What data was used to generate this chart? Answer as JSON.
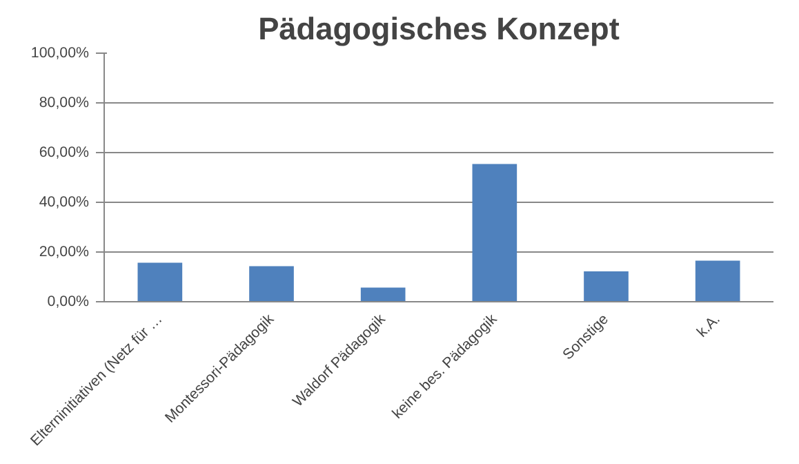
{
  "chart_data": {
    "type": "bar",
    "title": "Pädagogisches Konzept",
    "categories": [
      "Elterninitiativen (Netz für …",
      "Montessori-Pädagogik",
      "Waldorf Pädagogik",
      "keine bes. Pädagogik",
      "Sonstige",
      "k.A."
    ],
    "values": [
      15.7,
      14.3,
      5.7,
      55.4,
      12.2,
      16.5
    ],
    "color": "#4f81bd",
    "ylim": [
      0,
      100
    ],
    "yticks": [
      {
        "value": 0,
        "label": "0,00%"
      },
      {
        "value": 20,
        "label": "20,00%"
      },
      {
        "value": 40,
        "label": "40,00%"
      },
      {
        "value": 60,
        "label": "60,00%"
      },
      {
        "value": 80,
        "label": "80,00%"
      },
      {
        "value": 100,
        "label": "100,00%"
      }
    ],
    "grid": "y"
  }
}
